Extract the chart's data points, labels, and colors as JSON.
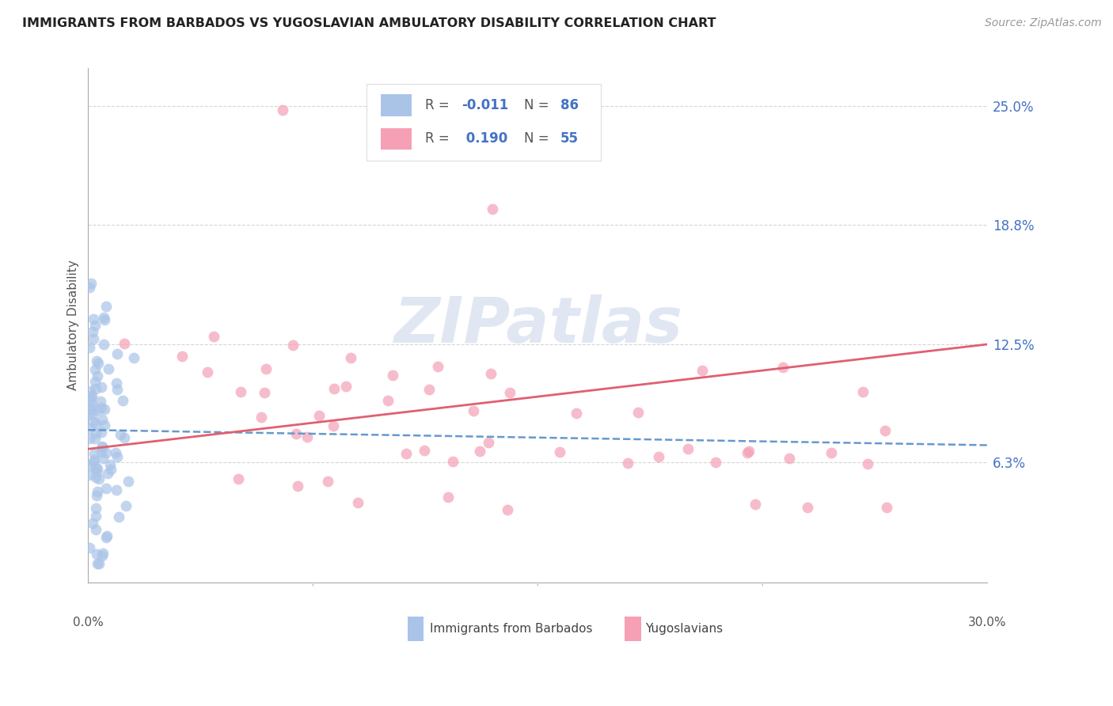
{
  "title": "IMMIGRANTS FROM BARBADOS VS YUGOSLAVIAN AMBULATORY DISABILITY CORRELATION CHART",
  "source": "Source: ZipAtlas.com",
  "ylabel": "Ambulatory Disability",
  "ytick_labels": [
    "6.3%",
    "12.5%",
    "18.8%",
    "25.0%"
  ],
  "ytick_values": [
    0.063,
    0.125,
    0.188,
    0.25
  ],
  "xlim": [
    0.0,
    0.3
  ],
  "ylim": [
    0.0,
    0.27
  ],
  "legend_entries": [
    {
      "label": "Immigrants from Barbados",
      "R": -0.011,
      "N": 86,
      "color": "#aac4e8"
    },
    {
      "label": "Yugoslavians",
      "R": 0.19,
      "N": 55,
      "color": "#f5a0b5"
    }
  ],
  "watermark_text": "ZIPatlas",
  "blue_trend": {
    "x_start": 0.0,
    "x_end": 0.3,
    "y_start": 0.08,
    "y_end": 0.072
  },
  "pink_trend": {
    "x_start": 0.0,
    "x_end": 0.3,
    "y_start": 0.07,
    "y_end": 0.125
  },
  "background_color": "#ffffff",
  "grid_color": "#cccccc",
  "title_color": "#222222",
  "ytick_color": "#4472c4",
  "source_color": "#999999"
}
